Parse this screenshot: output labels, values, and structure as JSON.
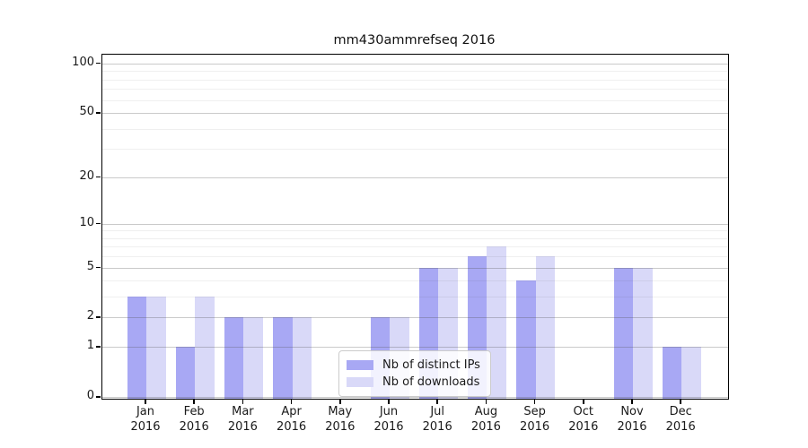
{
  "title": "mm430ammrefseq 2016",
  "chart_data": {
    "type": "bar",
    "title": "mm430ammrefseq 2016",
    "categories": [
      "Jan 2016",
      "Feb 2016",
      "Mar 2016",
      "Apr 2016",
      "May 2016",
      "Jun 2016",
      "Jul 2016",
      "Aug 2016",
      "Sep 2016",
      "Oct 2016",
      "Nov 2016",
      "Dec 2016"
    ],
    "x_tick_months": [
      "Jan",
      "Feb",
      "Mar",
      "Apr",
      "May",
      "Jun",
      "Jul",
      "Aug",
      "Sep",
      "Oct",
      "Nov",
      "Dec"
    ],
    "x_tick_year": "2016",
    "series": [
      {
        "name": "Nb of distinct IPs",
        "color": "#a8a8f4",
        "values": [
          3,
          1,
          2,
          2,
          0,
          2,
          5,
          6,
          4,
          0,
          5,
          1
        ]
      },
      {
        "name": "Nb of downloads",
        "color": "#d9d9f8",
        "values": [
          3,
          3,
          2,
          2,
          0,
          2,
          5,
          7,
          6,
          0,
          5,
          1
        ]
      }
    ],
    "xlabel": "",
    "ylabel": "",
    "yscale": "log1p",
    "y_ticks": [
      0,
      1,
      2,
      5,
      10,
      20,
      50,
      100
    ],
    "y_minor_ticks": [
      3,
      4,
      6,
      7,
      8,
      9,
      30,
      40,
      60,
      70,
      80,
      90
    ],
    "ylim": [
      0,
      113
    ],
    "grid": true,
    "legend_position": "lower center"
  },
  "legend": {
    "items": [
      {
        "label": "Nb of distinct IPs"
      },
      {
        "label": "Nb of downloads"
      }
    ]
  }
}
